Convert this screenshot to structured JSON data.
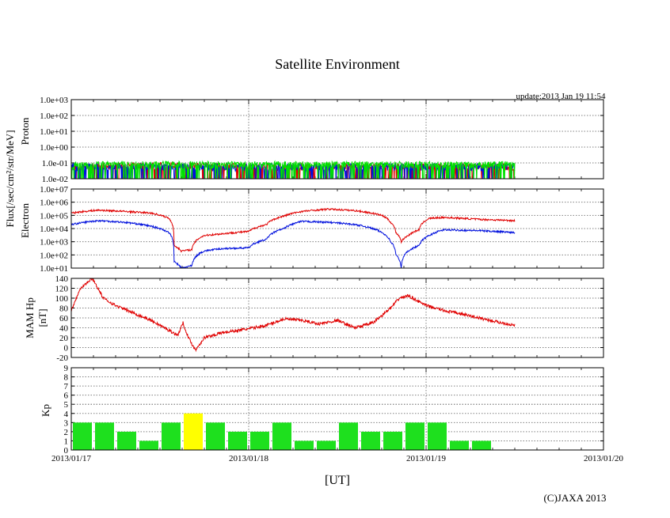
{
  "title": "Satellite Environment",
  "update": "update:2013 Jan 19 11:54",
  "copyright": "(C)JAXA 2013",
  "xlabel": "[UT]",
  "shared_ylabel": "Flux[/sec/cm²/str/MeV]",
  "x_ticks": [
    "2013/01/17",
    "2013/01/18",
    "2013/01/19",
    "2013/01/20"
  ],
  "colors": {
    "red": "#e00000",
    "blue": "#0010dd",
    "green": "#00e000",
    "kp_normal": "#1ee01e",
    "kp_high": "#ffff00",
    "grid": "#808080"
  },
  "chart_data": [
    {
      "id": "proton",
      "type": "line",
      "ylabel": "Proton",
      "log_scale": true,
      "ylim": [
        0.01,
        1000
      ],
      "y_ticks": [
        "1.0e+03",
        "1.0e+02",
        "1.0e+01",
        "1.0e+00",
        "1.0e-01",
        "1.0e-02"
      ],
      "x_unit": "days since 2013/01/17 00:00 UT",
      "series": [
        {
          "color": "red",
          "x": [
            0.0,
            0.5,
            1.0,
            1.5,
            2.0,
            2.5
          ],
          "y": [
            0.05,
            0.06,
            0.05,
            0.05,
            0.05,
            0.05
          ]
        },
        {
          "color": "blue",
          "x": [
            0.0,
            0.5,
            1.0,
            1.5,
            2.0,
            2.5
          ],
          "y": [
            0.05,
            0.05,
            0.05,
            0.05,
            0.05,
            0.05
          ]
        },
        {
          "color": "green",
          "x": [
            0.0,
            0.5,
            1.0,
            1.5,
            2.0,
            2.5
          ],
          "y": [
            0.07,
            0.07,
            0.07,
            0.07,
            0.07,
            0.07
          ]
        }
      ]
    },
    {
      "id": "electron",
      "type": "line",
      "ylabel": "Electron",
      "log_scale": true,
      "ylim": [
        10,
        10000000
      ],
      "y_ticks": [
        "1.0e+07",
        "1.0e+06",
        "1.0e+05",
        "1.0e+04",
        "1.0e+03",
        "1.0e+02",
        "1.0e+01"
      ],
      "series": [
        {
          "color": "red",
          "x": [
            0.0,
            0.15,
            0.3,
            0.45,
            0.55,
            0.58,
            0.62,
            0.68,
            0.75,
            0.85,
            1.0,
            1.1,
            1.2,
            1.3,
            1.45,
            1.6,
            1.75,
            1.8,
            1.83,
            1.86,
            1.9,
            1.96,
            2.02,
            2.1,
            2.3,
            2.5
          ],
          "y": [
            150000,
            250000,
            200000,
            150000,
            60000,
            500,
            200,
            250,
            3000,
            4000,
            6000,
            20000,
            90000,
            200000,
            300000,
            230000,
            100000,
            30000,
            5000,
            1000,
            3000,
            8000,
            60000,
            70000,
            50000,
            40000
          ]
        },
        {
          "color": "blue",
          "x": [
            0.0,
            0.15,
            0.3,
            0.45,
            0.55,
            0.58,
            0.62,
            0.68,
            0.75,
            0.85,
            1.0,
            1.1,
            1.2,
            1.3,
            1.45,
            1.6,
            1.75,
            1.8,
            1.83,
            1.86,
            1.9,
            1.96,
            2.02,
            2.1,
            2.3,
            2.5
          ],
          "y": [
            20000,
            40000,
            30000,
            15000,
            5000,
            30,
            10,
            15,
            200,
            300,
            350,
            1500,
            10000,
            35000,
            30000,
            20000,
            5000,
            1000,
            100,
            10,
            200,
            500,
            3000,
            8000,
            7000,
            5000
          ]
        }
      ]
    },
    {
      "id": "mam_hp",
      "type": "line",
      "ylabel": "MAM Hp [nT]",
      "ylim": [
        -20,
        140
      ],
      "y_ticks": [
        140,
        120,
        100,
        80,
        60,
        40,
        20,
        0,
        -20
      ],
      "series": [
        {
          "color": "red",
          "x": [
            0.0,
            0.05,
            0.12,
            0.18,
            0.25,
            0.35,
            0.45,
            0.55,
            0.6,
            0.63,
            0.66,
            0.7,
            0.75,
            0.85,
            1.0,
            1.1,
            1.2,
            1.3,
            1.4,
            1.5,
            1.6,
            1.7,
            1.8,
            1.85,
            1.9,
            2.0,
            2.1,
            2.2,
            2.3,
            2.4,
            2.5
          ],
          "y": [
            75,
            120,
            140,
            100,
            85,
            70,
            55,
            35,
            25,
            50,
            20,
            -5,
            20,
            30,
            38,
            45,
            58,
            55,
            48,
            55,
            40,
            50,
            80,
            100,
            105,
            85,
            75,
            68,
            60,
            52,
            45
          ]
        }
      ]
    },
    {
      "id": "kp",
      "type": "bar",
      "ylabel": "Kp",
      "ylim": [
        0,
        9
      ],
      "y_ticks": [
        9,
        8,
        7,
        6,
        5,
        4,
        3,
        2,
        1,
        0
      ],
      "bin_hours": 3,
      "values": [
        3,
        3,
        2,
        1,
        3,
        4,
        3,
        2,
        2,
        3,
        1,
        1,
        3,
        2,
        2,
        3,
        3,
        1,
        1
      ]
    }
  ]
}
